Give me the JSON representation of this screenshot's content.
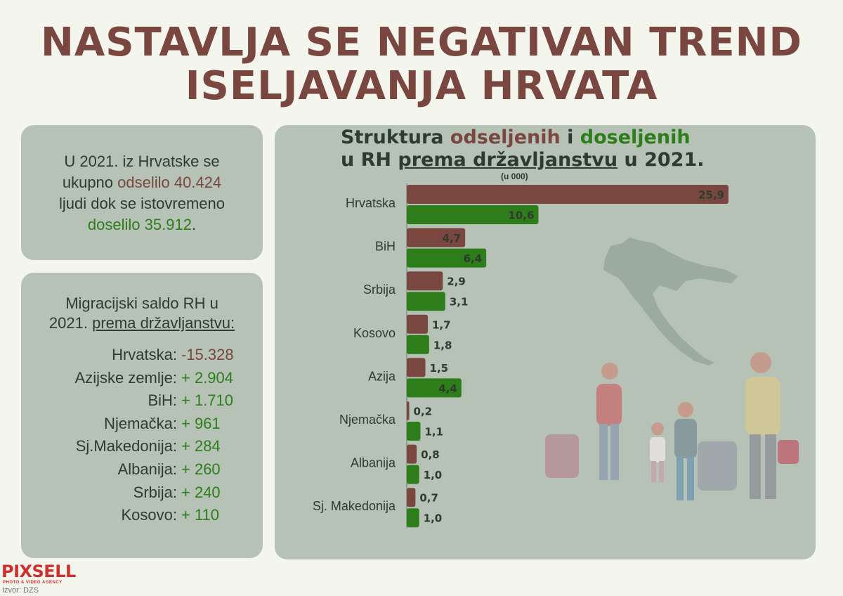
{
  "headline": {
    "line1": "NASTAVLJA SE NEGATIVAN TREND",
    "line2": "ISELJAVANJA HRVATA"
  },
  "summary": {
    "l1": "U 2021. iz Hrvatske se",
    "l2a": "ukupno ",
    "l2b": "odselilo 40.424",
    "l3": "ljudi dok se istovremeno",
    "l4a": "doselilo 35.912",
    "l4b": "."
  },
  "saldo": {
    "title_l1": "Migracijski saldo RH u",
    "title_l2a": "2021. ",
    "title_l2b": "prema državljanstvu:",
    "rows": [
      {
        "label": "Hrvatska:",
        "value": "-15.328",
        "color": "#7a4640"
      },
      {
        "label": "Azijske zemlje:",
        "value": "+ 2.904",
        "color": "#2e7d1b"
      },
      {
        "label": "BiH:",
        "value": "+ 1.710",
        "color": "#2e7d1b"
      },
      {
        "label": "Njemačka:",
        "value": "+ 961",
        "color": "#2e7d1b"
      },
      {
        "label": "Sj.Makedonija:",
        "value": "+ 284",
        "color": "#2e7d1b"
      },
      {
        "label": "Albanija:",
        "value": "+ 260",
        "color": "#2e7d1b"
      },
      {
        "label": "Srbija:",
        "value": "+ 240",
        "color": "#2e7d1b"
      },
      {
        "label": "Kosovo:",
        "value": "+ 110",
        "color": "#2e7d1b"
      }
    ]
  },
  "chart_title": {
    "l1a": "Struktura ",
    "l1b": "odseljenih ",
    "l1c": " i ",
    "l1d": "doseljenih",
    "l2a": "u RH ",
    "l2b": "prema državljanstvu",
    "l2c": " u 2021.",
    "unit": "(u 000)"
  },
  "colors": {
    "emigrated": "#7a4640",
    "immigrated": "#2e7d1b",
    "panel": "#b5c2b5",
    "title_red": "#7a4640",
    "title_green": "#2e7d1b"
  },
  "chart_data": {
    "type": "bar",
    "orientation": "horizontal",
    "categories": [
      "Hrvatska",
      "BiH",
      "Srbija",
      "Kosovo",
      "Azija",
      "Njemačka",
      "Albanija",
      "Sj. Makedonija"
    ],
    "series": [
      {
        "values": [
          25.9,
          4.7,
          2.9,
          1.7,
          1.5,
          0.2,
          0.8,
          0.7
        ],
        "labels": [
          "25,9",
          "4,7",
          "2,9",
          "1,7",
          "1,5",
          "0,2",
          "0,8",
          "0,7"
        ]
      },
      {
        "values": [
          10.6,
          6.4,
          3.1,
          1.8,
          4.4,
          1.1,
          1.0,
          1.0
        ],
        "labels": [
          "10,6",
          "6,4",
          "3,1",
          "1,8",
          "4,4",
          "1,1",
          "1,0",
          "1,0"
        ]
      }
    ],
    "xlim": [
      0,
      25.9
    ]
  },
  "logo": {
    "name": "PIXSELL",
    "tagline": "PHOTO & VIDEO AGENCY"
  },
  "source": "Izvor: DZS"
}
